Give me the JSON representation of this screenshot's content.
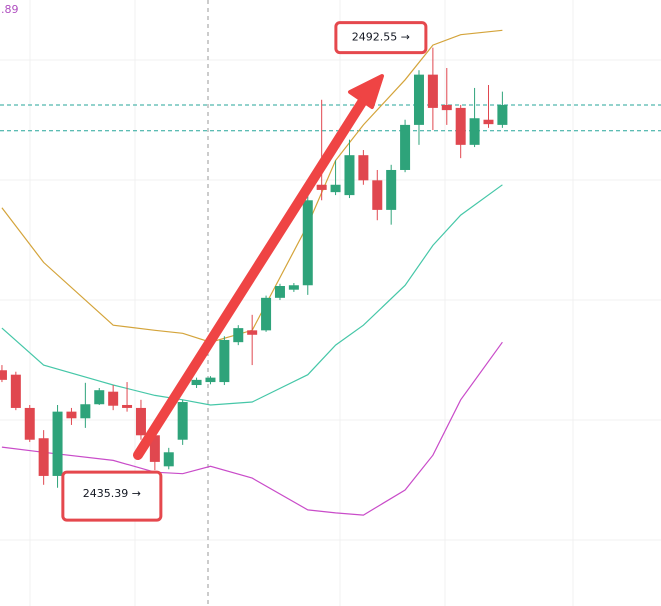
{
  "chart_data": {
    "type": "candlestick",
    "corner_label": ".89",
    "xlim": [
      -0.14,
      47.41
    ],
    "ylim": [
      2417,
      2499
    ],
    "up_color": "#2ea37a",
    "down_color": "#e0474f",
    "x": [
      0,
      1,
      2,
      3,
      4,
      5,
      6,
      7,
      8,
      9,
      10,
      11,
      12,
      13,
      14,
      15,
      16,
      17,
      18,
      19,
      20,
      21,
      22,
      23,
      24,
      25,
      26,
      27,
      28,
      29,
      30,
      31,
      32,
      33,
      34,
      35,
      36
    ],
    "open": [
      2448.9,
      2448.3,
      2443.8,
      2439.7,
      2434.6,
      2443.3,
      2442.4,
      2444.3,
      2446.0,
      2444.2,
      2443.8,
      2440.1,
      2435.9,
      2439.5,
      2446.9,
      2447.3,
      2447.3,
      2452.7,
      2454.3,
      2454.3,
      2458.7,
      2459.8,
      2460.4,
      2474.0,
      2473.0,
      2472.6,
      2478.0,
      2474.6,
      2470.6,
      2476.0,
      2482.1,
      2488.9,
      2484.8,
      2484.4,
      2479.4,
      2482.8,
      2482.1
    ],
    "high": [
      2449.6,
      2448.7,
      2444.2,
      2440.8,
      2444.2,
      2443.8,
      2447.2,
      2446.5,
      2446.9,
      2447.3,
      2444.9,
      2440.8,
      2438.4,
      2444.9,
      2447.9,
      2448.1,
      2453.5,
      2455.0,
      2456.4,
      2459.0,
      2460.6,
      2460.7,
      2472.6,
      2485.5,
      2477.3,
      2480.1,
      2478.7,
      2476.0,
      2476.7,
      2482.8,
      2489.5,
      2492.55,
      2489.8,
      2484.8,
      2487.1,
      2487.5,
      2486.6
    ],
    "low": [
      2447.3,
      2443.5,
      2439.2,
      2433.4,
      2433.0,
      2441.5,
      2441.1,
      2444.2,
      2443.5,
      2443.3,
      2439.5,
      2435.39,
      2435.5,
      2438.8,
      2446.5,
      2447.0,
      2446.9,
      2452.3,
      2449.6,
      2454.1,
      2458.4,
      2459.5,
      2459.1,
      2471.9,
      2472.6,
      2472.2,
      2474.0,
      2469.2,
      2468.6,
      2475.7,
      2479.4,
      2481.4,
      2482.1,
      2477.6,
      2479.1,
      2481.7,
      2481.7
    ],
    "close": [
      2447.6,
      2443.8,
      2439.5,
      2434.6,
      2443.3,
      2442.4,
      2444.3,
      2446.2,
      2444.1,
      2443.8,
      2440.1,
      2436.5,
      2437.8,
      2444.6,
      2447.6,
      2447.9,
      2453.0,
      2454.6,
      2453.7,
      2458.7,
      2460.3,
      2460.4,
      2471.9,
      2473.3,
      2474.0,
      2478.0,
      2474.6,
      2470.6,
      2476.0,
      2482.1,
      2488.9,
      2484.4,
      2484.1,
      2479.4,
      2483.0,
      2482.2,
      2484.8
    ],
    "lines": [
      {
        "color": "#d4a43b",
        "x": [
          0,
          3,
          8,
          11,
          13,
          15,
          18,
          22,
          24,
          26,
          29,
          31,
          33,
          36
        ],
        "values": [
          2470.9,
          2463.5,
          2455.0,
          2454.3,
          2453.9,
          2452.7,
          2454.3,
          2468.6,
          2477.3,
          2482.1,
          2488.2,
          2492.9,
          2494.3,
          2494.9
        ]
      },
      {
        "color": "#46c7a8",
        "x": [
          0,
          3,
          8,
          11,
          13,
          15,
          18,
          22,
          24,
          26,
          29,
          31,
          33,
          36
        ],
        "values": [
          2454.6,
          2449.6,
          2446.9,
          2445.5,
          2444.9,
          2444.2,
          2444.6,
          2448.3,
          2452.3,
          2455.0,
          2460.4,
          2465.8,
          2469.9,
          2474.0
        ]
      },
      {
        "color": "#c94cc9",
        "x": [
          0,
          3,
          8,
          11,
          13,
          15,
          18,
          22,
          24,
          26,
          29,
          31,
          33,
          36
        ],
        "values": [
          2438.5,
          2437.8,
          2436.7,
          2435.1,
          2434.9,
          2435.9,
          2434.3,
          2430.0,
          2429.6,
          2429.3,
          2432.7,
          2437.4,
          2444.9,
          2452.7
        ]
      }
    ],
    "hlines": [
      2484.8,
      2481.3
    ],
    "hline_color": "#26a69a",
    "annotations": [
      {
        "text": "2492.55 →",
        "x": 31,
        "y": 2492.55
      },
      {
        "text": "2435.39 →",
        "x": 11,
        "y": 2435.39
      }
    ]
  }
}
